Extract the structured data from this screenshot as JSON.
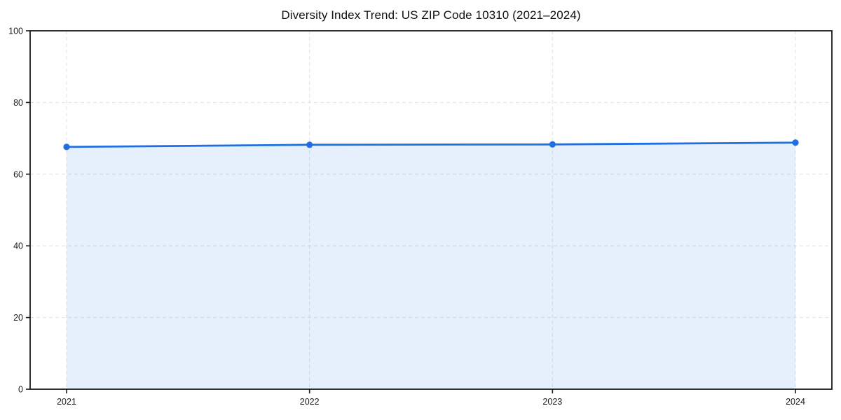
{
  "chart_data": {
    "type": "line",
    "title": "Diversity Index Trend: US ZIP Code 10310 (2021–2024)",
    "categories": [
      "2021",
      "2022",
      "2023",
      "2024"
    ],
    "series": [
      {
        "name": "Diversity Index",
        "values": [
          67.6,
          68.2,
          68.3,
          68.8
        ]
      }
    ],
    "xlabel": "",
    "ylabel": "",
    "ylim": [
      0,
      100
    ],
    "yticks": [
      0,
      20,
      40,
      60,
      80,
      100
    ],
    "grid": "dashed",
    "legend_position": "none",
    "area_fill": true,
    "marker": "circle",
    "colors": {
      "line": "#1f6fe0",
      "marker": "#1f6fe0",
      "area": "rgba(31,111,224,0.11)",
      "grid": "#e0e0e0",
      "axis": "#1a1a1a",
      "tick_text": "#1a1a1a",
      "background": "#ffffff"
    }
  }
}
